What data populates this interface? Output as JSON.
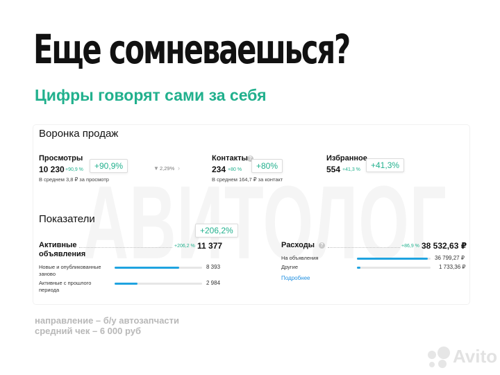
{
  "headline": "Еще сомневаешься?",
  "subheadline": "Цифры говорят сами за себя",
  "watermark": "АВИТОЛОГ",
  "funnel": {
    "title": "Воронка продаж",
    "views": {
      "label": "Просмотры",
      "value": "10 230",
      "delta": "+90,9 %",
      "badge": "+90,9%",
      "avg": "В среднем 3,8 ₽ за просмотр"
    },
    "conversion": "2,29%",
    "contacts": {
      "label": "Контакты",
      "value": "234",
      "delta": "+80 %",
      "badge": "+80%",
      "avg": "В среднем 164,7 ₽ за контакт"
    },
    "favorites": {
      "label": "Избранное",
      "value": "554",
      "delta": "+41,3 %",
      "badge": "+41,3%"
    }
  },
  "indicators": {
    "title": "Показатели",
    "active": {
      "label_line1": "Активные",
      "label_line2": "объявления",
      "delta": "+206,2 %",
      "badge": "+206,2%",
      "value": "11 377",
      "rows": [
        {
          "label_line1": "Новые и опубликованные",
          "label_line2": "заново",
          "value": "8 393",
          "fill": 0.74
        },
        {
          "label_line1": "Активные с прошлого",
          "label_line2": "периода",
          "value": "2 984",
          "fill": 0.26
        }
      ]
    },
    "expenses": {
      "label": "Расходы",
      "delta": "+86,9 %",
      "value": "38 532,63 ₽",
      "rows": [
        {
          "label": "На объявления",
          "value": "36 799,27 ₽",
          "fill": 0.96
        },
        {
          "label": "Другие",
          "value": "1 733,36 ₽",
          "fill": 0.05
        }
      ],
      "link": "Подробнее"
    }
  },
  "footer": {
    "line1": "направление – б/у автозапчасти",
    "line2": "средний чек – 6 000 руб"
  },
  "brand": {
    "name": "Avito"
  },
  "colors": {
    "accent": "#21b08d",
    "bar": "#1fa3e0",
    "link": "#1f8fe0"
  }
}
